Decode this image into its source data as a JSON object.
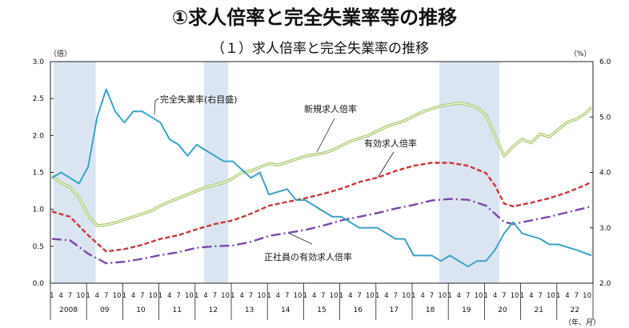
{
  "chart_data": {
    "type": "line",
    "title": "①求人倍率と完全失業率等の推移",
    "subtitle": "（１）求人倍率と完全失業率の推移",
    "ylabel_left_unit": "（倍）",
    "ylabel_right_unit": "（%）",
    "xlabel_unit": "（年、月）",
    "ylim_left": [
      0,
      3.0
    ],
    "ylim_right": [
      2.0,
      6.0
    ],
    "yticks_left": [
      "0.0",
      "0.5",
      "1.0",
      "1.5",
      "2.0",
      "2.5",
      "3.0"
    ],
    "yticks_right": [
      "2.0",
      "3.0",
      "4.0",
      "5.0",
      "6.0"
    ],
    "month_ticks": [
      "1",
      "4",
      "7",
      "10"
    ],
    "years": [
      "2008",
      "09",
      "10",
      "11",
      "12",
      "13",
      "14",
      "15",
      "16",
      "17",
      "18",
      "19",
      "20",
      "21",
      "22"
    ],
    "grid": false,
    "shaded_periods": [
      [
        "2008-02",
        "2009-03"
      ],
      [
        "2012-04",
        "2012-11"
      ],
      [
        "2018-10",
        "2020-05"
      ]
    ],
    "colors": {
      "new_openings": "#a8c96a",
      "effective": "#c8363a",
      "regular": "#7a4aa8",
      "unemployment": "#3aa3c4",
      "shade": "#dbe5f1"
    },
    "series": [
      {
        "name": "新規求人倍率",
        "axis": "left",
        "style": "double-line",
        "x": [
          "2008-01",
          "2008-04",
          "2008-07",
          "2008-10",
          "2009-01",
          "2009-04",
          "2009-07",
          "2009-10",
          "2010-01",
          "2010-04",
          "2010-07",
          "2010-10",
          "2011-01",
          "2011-04",
          "2011-07",
          "2011-10",
          "2012-01",
          "2012-04",
          "2012-07",
          "2012-10",
          "2013-01",
          "2013-04",
          "2013-07",
          "2013-10",
          "2014-01",
          "2014-04",
          "2014-07",
          "2014-10",
          "2015-01",
          "2015-04",
          "2015-07",
          "2015-10",
          "2016-01",
          "2016-04",
          "2016-07",
          "2016-10",
          "2017-01",
          "2017-04",
          "2017-07",
          "2017-10",
          "2018-01",
          "2018-04",
          "2018-07",
          "2018-10",
          "2019-01",
          "2019-04",
          "2019-07",
          "2019-10",
          "2020-01",
          "2020-04",
          "2020-07",
          "2020-10",
          "2021-01",
          "2021-04",
          "2021-07",
          "2021-10",
          "2022-01",
          "2022-04",
          "2022-07",
          "2022-10",
          "2022-12"
        ],
        "values": [
          1.45,
          1.36,
          1.3,
          1.16,
          0.92,
          0.78,
          0.79,
          0.82,
          0.86,
          0.9,
          0.94,
          0.98,
          1.05,
          1.1,
          1.15,
          1.2,
          1.25,
          1.3,
          1.33,
          1.36,
          1.42,
          1.5,
          1.52,
          1.57,
          1.62,
          1.6,
          1.64,
          1.68,
          1.72,
          1.74,
          1.76,
          1.8,
          1.86,
          1.92,
          1.96,
          2.0,
          2.06,
          2.12,
          2.16,
          2.2,
          2.26,
          2.32,
          2.36,
          2.4,
          2.42,
          2.44,
          2.42,
          2.38,
          2.28,
          2.0,
          1.72,
          1.85,
          1.95,
          1.9,
          2.02,
          1.98,
          2.08,
          2.18,
          2.22,
          2.3,
          2.38
        ]
      },
      {
        "name": "有効求人倍率",
        "axis": "left",
        "style": "dashed",
        "x": [
          "2008-01",
          "2008-07",
          "2009-01",
          "2009-07",
          "2010-01",
          "2010-07",
          "2011-01",
          "2011-07",
          "2012-01",
          "2012-07",
          "2013-01",
          "2013-07",
          "2014-01",
          "2014-07",
          "2015-01",
          "2015-07",
          "2016-01",
          "2016-07",
          "2017-01",
          "2017-07",
          "2018-01",
          "2018-07",
          "2019-01",
          "2019-07",
          "2020-01",
          "2020-04",
          "2020-07",
          "2020-10",
          "2021-04",
          "2021-10",
          "2022-04",
          "2022-10",
          "2022-12"
        ],
        "values": [
          0.97,
          0.9,
          0.65,
          0.43,
          0.46,
          0.52,
          0.6,
          0.65,
          0.73,
          0.8,
          0.85,
          0.94,
          1.05,
          1.1,
          1.15,
          1.21,
          1.28,
          1.37,
          1.43,
          1.52,
          1.59,
          1.63,
          1.63,
          1.59,
          1.49,
          1.32,
          1.08,
          1.04,
          1.09,
          1.15,
          1.23,
          1.33,
          1.37
        ]
      },
      {
        "name": "正社員の有効求人倍率",
        "axis": "left",
        "style": "dash-dot",
        "x": [
          "2008-01",
          "2008-07",
          "2009-01",
          "2009-07",
          "2010-01",
          "2010-07",
          "2011-01",
          "2011-07",
          "2012-01",
          "2012-07",
          "2013-01",
          "2013-07",
          "2014-01",
          "2014-07",
          "2015-01",
          "2015-07",
          "2016-01",
          "2016-07",
          "2017-01",
          "2017-07",
          "2018-01",
          "2018-07",
          "2019-01",
          "2019-07",
          "2020-01",
          "2020-07",
          "2020-10",
          "2021-04",
          "2021-10",
          "2022-04",
          "2022-12"
        ],
        "values": [
          0.6,
          0.58,
          0.4,
          0.27,
          0.29,
          0.33,
          0.38,
          0.42,
          0.48,
          0.5,
          0.51,
          0.56,
          0.64,
          0.68,
          0.72,
          0.78,
          0.85,
          0.9,
          0.95,
          1.01,
          1.06,
          1.12,
          1.14,
          1.13,
          1.05,
          0.83,
          0.8,
          0.85,
          0.9,
          0.96,
          1.04
        ]
      },
      {
        "name": "完全失業率（右目盛）",
        "axis": "right",
        "style": "solid",
        "x": [
          "2008-01",
          "2008-04",
          "2008-07",
          "2008-10",
          "2009-01",
          "2009-04",
          "2009-07",
          "2009-10",
          "2010-01",
          "2010-04",
          "2010-07",
          "2010-10",
          "2011-01",
          "2011-04",
          "2011-07",
          "2011-10",
          "2012-01",
          "2012-07",
          "2012-10",
          "2013-01",
          "2013-07",
          "2013-10",
          "2014-01",
          "2014-07",
          "2014-10",
          "2015-01",
          "2015-07",
          "2015-10",
          "2016-01",
          "2016-07",
          "2016-10",
          "2017-01",
          "2017-07",
          "2017-10",
          "2018-01",
          "2018-07",
          "2018-10",
          "2019-01",
          "2019-07",
          "2019-10",
          "2020-01",
          "2020-04",
          "2020-07",
          "2020-10",
          "2021-01",
          "2021-07",
          "2021-10",
          "2022-01",
          "2022-07",
          "2022-12"
        ],
        "values": [
          3.9,
          4.0,
          3.9,
          3.8,
          4.1,
          5.0,
          5.5,
          5.1,
          4.9,
          5.1,
          5.1,
          5.0,
          4.9,
          4.6,
          4.5,
          4.3,
          4.5,
          4.3,
          4.2,
          4.2,
          3.9,
          4.0,
          3.6,
          3.7,
          3.5,
          3.5,
          3.3,
          3.2,
          3.2,
          3.0,
          3.0,
          3.0,
          2.8,
          2.8,
          2.5,
          2.5,
          2.4,
          2.5,
          2.3,
          2.4,
          2.4,
          2.6,
          2.9,
          3.1,
          2.9,
          2.8,
          2.7,
          2.7,
          2.6,
          2.5
        ]
      }
    ],
    "annotations": [
      "完全失業率(右目盛)",
      "新規求人倍率",
      "有効求人倍率",
      "正社員の有効求人倍率"
    ]
  }
}
